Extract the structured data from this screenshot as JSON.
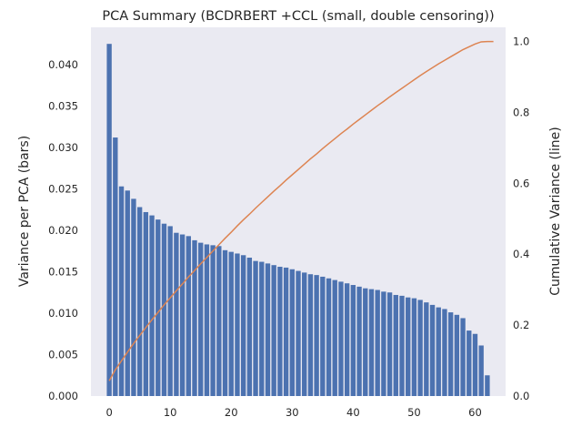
{
  "chart_data": {
    "type": "bar",
    "title": "PCA Summary (BCDRBERT +CCL (small, double censoring))",
    "xlabel": "",
    "ylabel": "Variance per PCA (bars)",
    "y2label": "Cumulative Variance (line)",
    "xlim": [
      -3,
      65
    ],
    "ylim": [
      0,
      0.0445
    ],
    "y2lim": [
      0,
      1.04
    ],
    "xticks": [
      0,
      10,
      20,
      30,
      40,
      50,
      60
    ],
    "yticks": [
      0.0,
      0.005,
      0.01,
      0.015,
      0.02,
      0.025,
      0.03,
      0.035,
      0.04
    ],
    "ytick_labels": [
      "0.000",
      "0.005",
      "0.010",
      "0.015",
      "0.020",
      "0.025",
      "0.030",
      "0.035",
      "0.040"
    ],
    "y2ticks": [
      0.0,
      0.2,
      0.4,
      0.6,
      0.8,
      1.0
    ],
    "y2tick_labels": [
      "0.0",
      "0.2",
      "0.4",
      "0.6",
      "0.8",
      "1.0"
    ],
    "grid": false,
    "series": [
      {
        "kind": "bar",
        "axis": "left",
        "color": "#4c72b0",
        "x": [
          0,
          1,
          2,
          3,
          4,
          5,
          6,
          7,
          8,
          9,
          10,
          11,
          12,
          13,
          14,
          15,
          16,
          17,
          18,
          19,
          20,
          21,
          22,
          23,
          24,
          25,
          26,
          27,
          28,
          29,
          30,
          31,
          32,
          33,
          34,
          35,
          36,
          37,
          38,
          39,
          40,
          41,
          42,
          43,
          44,
          45,
          46,
          47,
          48,
          49,
          50,
          51,
          52,
          53,
          54,
          55,
          56,
          57,
          58,
          59,
          60,
          61,
          62
        ],
        "values": [
          0.0425,
          0.0312,
          0.0253,
          0.0248,
          0.0238,
          0.0228,
          0.0222,
          0.0218,
          0.0213,
          0.0208,
          0.0205,
          0.0197,
          0.0195,
          0.0193,
          0.0188,
          0.0185,
          0.0183,
          0.0182,
          0.0181,
          0.0176,
          0.0174,
          0.0172,
          0.017,
          0.0167,
          0.0163,
          0.0162,
          0.016,
          0.0158,
          0.0156,
          0.0155,
          0.0153,
          0.0151,
          0.0149,
          0.0147,
          0.0146,
          0.0144,
          0.0142,
          0.014,
          0.0138,
          0.0136,
          0.0134,
          0.0132,
          0.013,
          0.0129,
          0.0128,
          0.0126,
          0.0125,
          0.0122,
          0.0121,
          0.0119,
          0.0118,
          0.0116,
          0.0113,
          0.011,
          0.0107,
          0.0105,
          0.0101,
          0.0098,
          0.0094,
          0.0079,
          0.0075,
          0.0061,
          0.0025
        ]
      },
      {
        "kind": "line",
        "axis": "right",
        "color": "#dd8452",
        "x": [
          0,
          1,
          2,
          3,
          4,
          5,
          6,
          7,
          8,
          9,
          10,
          11,
          12,
          13,
          14,
          15,
          16,
          17,
          18,
          19,
          20,
          21,
          22,
          23,
          24,
          25,
          26,
          27,
          28,
          29,
          30,
          31,
          32,
          33,
          34,
          35,
          36,
          37,
          38,
          39,
          40,
          41,
          42,
          43,
          44,
          45,
          46,
          47,
          48,
          49,
          50,
          51,
          52,
          53,
          54,
          55,
          56,
          57,
          58,
          59,
          60,
          61,
          62,
          63
        ],
        "values": [
          0.043,
          0.074,
          0.099,
          0.124,
          0.148,
          0.171,
          0.193,
          0.215,
          0.236,
          0.257,
          0.277,
          0.297,
          0.316,
          0.336,
          0.354,
          0.373,
          0.391,
          0.409,
          0.427,
          0.445,
          0.462,
          0.48,
          0.497,
          0.513,
          0.53,
          0.546,
          0.562,
          0.578,
          0.593,
          0.609,
          0.624,
          0.639,
          0.654,
          0.669,
          0.683,
          0.698,
          0.712,
          0.726,
          0.74,
          0.753,
          0.767,
          0.78,
          0.793,
          0.806,
          0.819,
          0.831,
          0.844,
          0.856,
          0.868,
          0.88,
          0.892,
          0.904,
          0.915,
          0.926,
          0.937,
          0.947,
          0.957,
          0.967,
          0.977,
          0.985,
          0.993,
          0.999,
          1.0,
          1.0
        ]
      }
    ]
  }
}
